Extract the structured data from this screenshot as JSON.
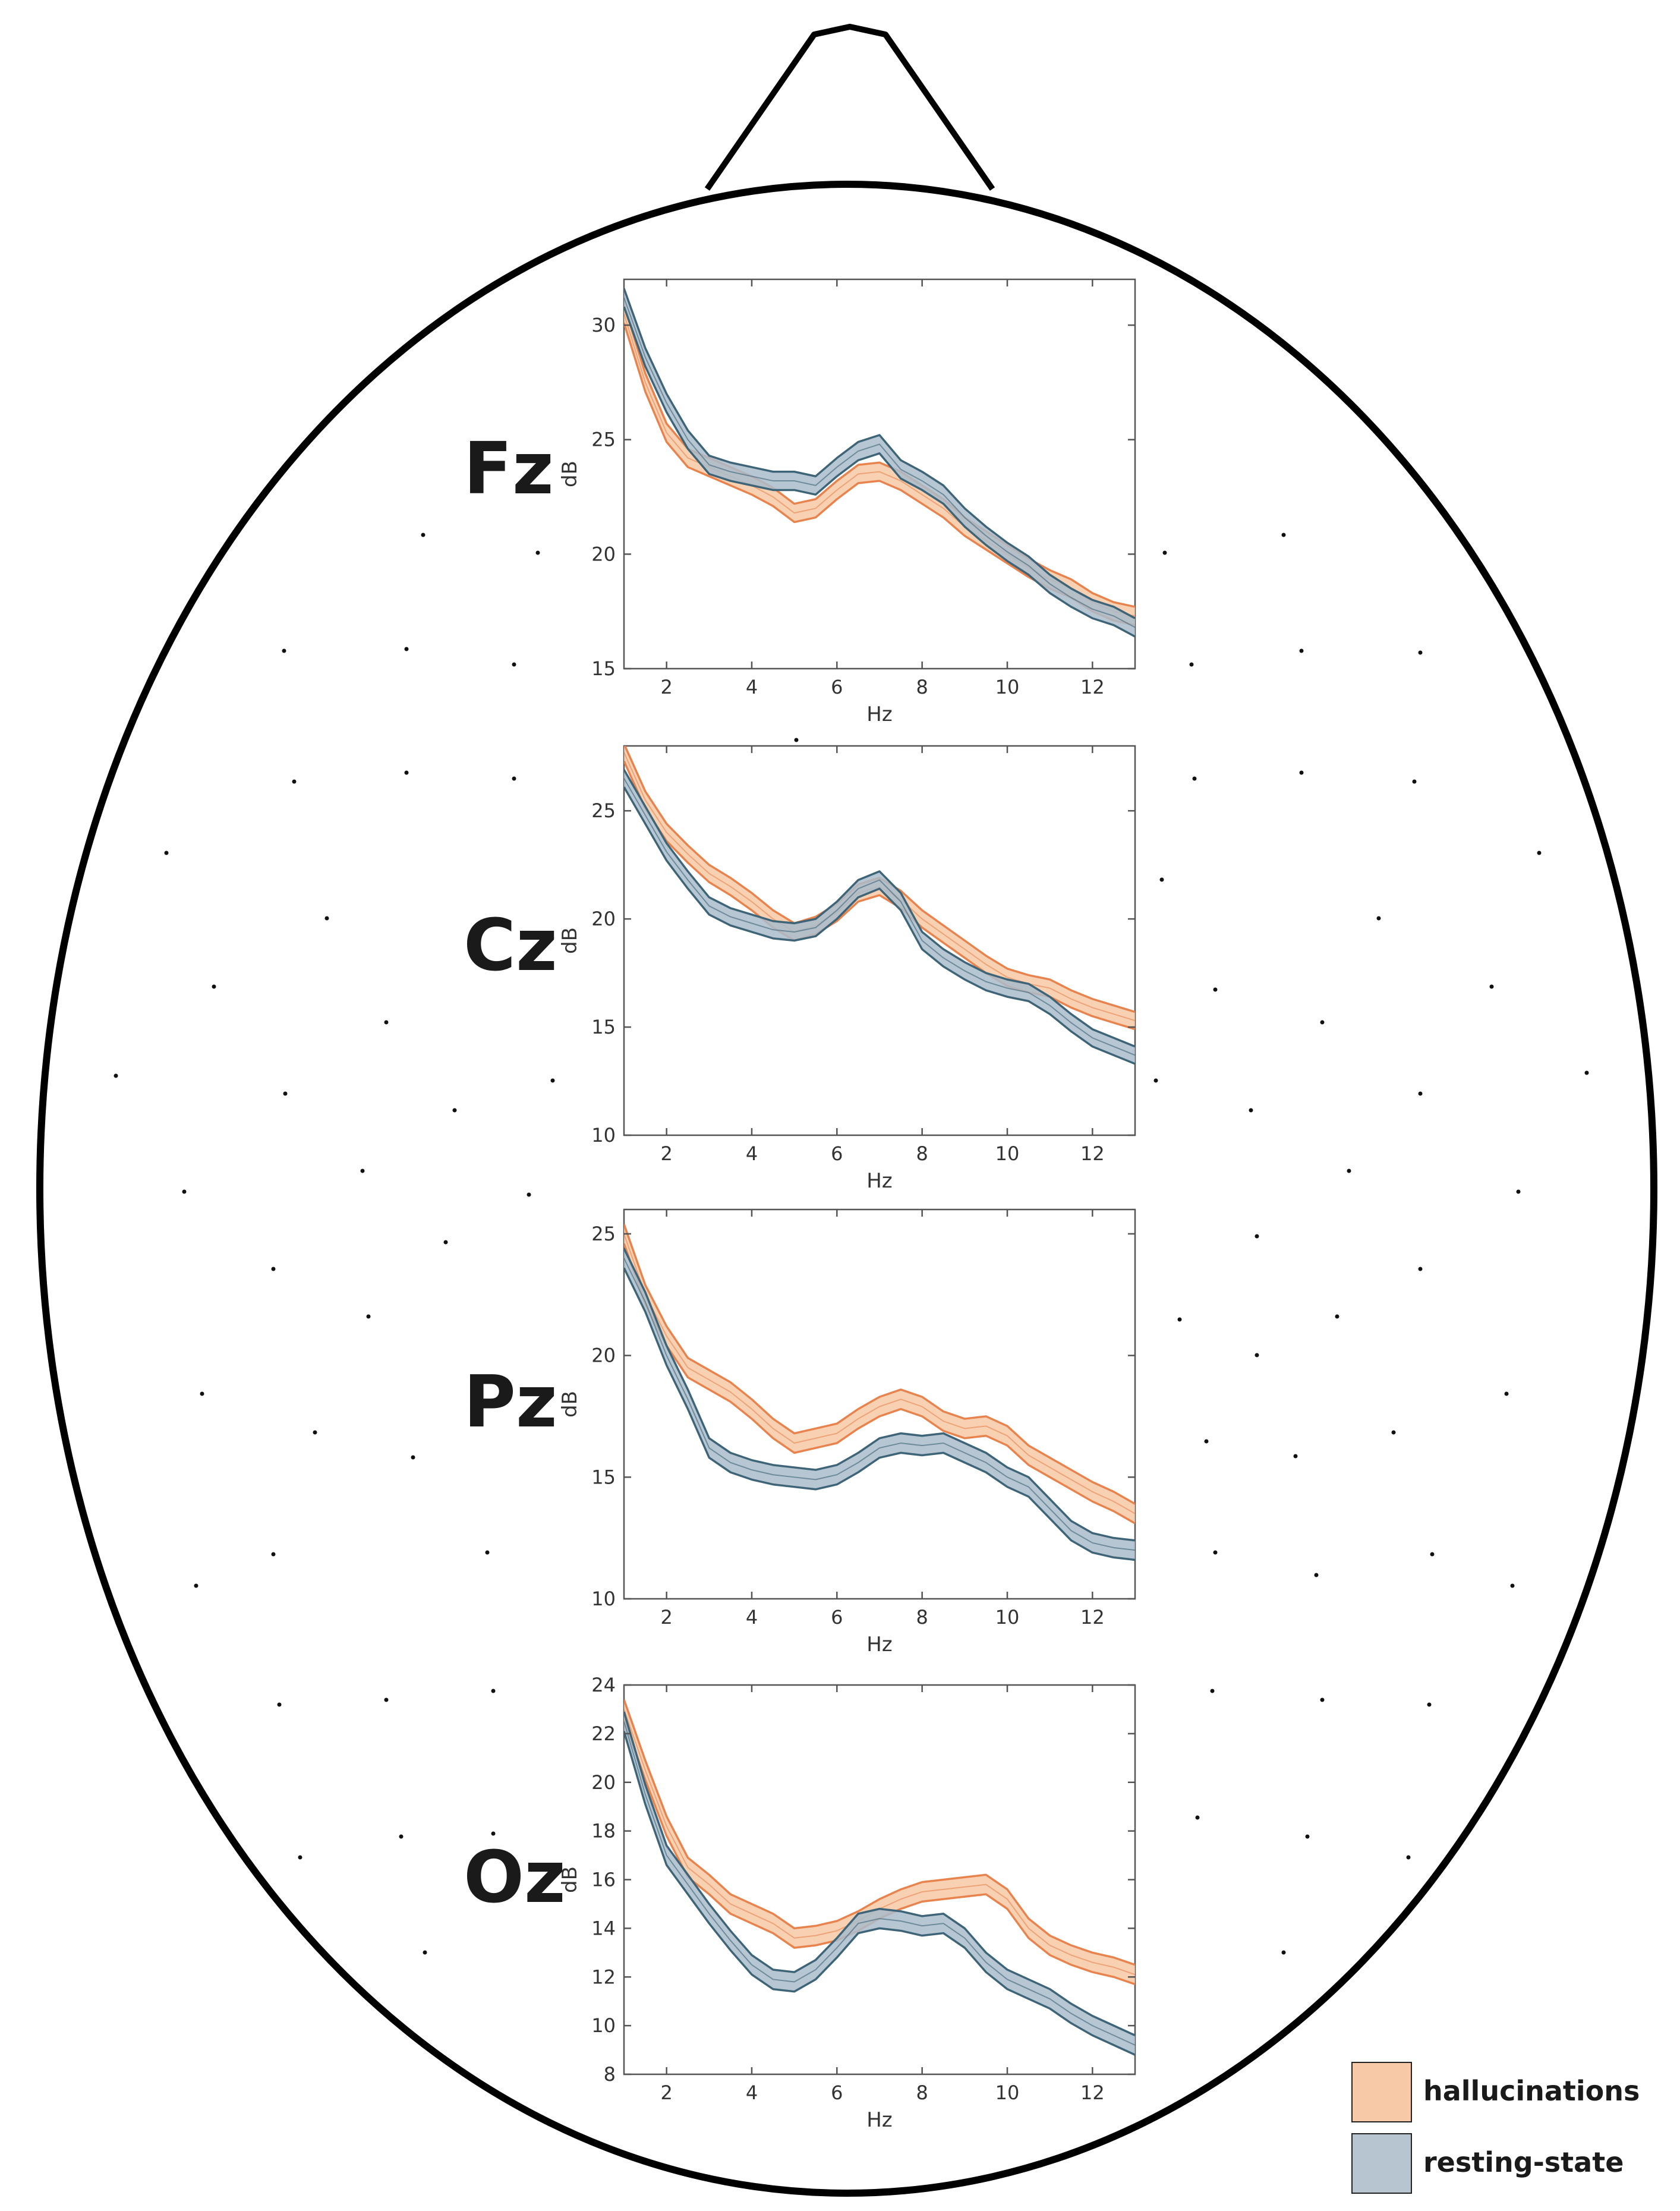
{
  "colors": {
    "hallucinations_line": "#E8834E",
    "hallucinations_band": "#F7C9A6",
    "resting_line": "#3E6478",
    "resting_band": "#A9BCCB",
    "head_outline": "#000000",
    "axes": "#555555"
  },
  "legend": {
    "placement": "bottom-right",
    "items": [
      {
        "label": "hallucinations",
        "color": "#F7C9A6"
      },
      {
        "label": "resting-state",
        "color": "#B7C5D1"
      }
    ]
  },
  "chart_data": [
    {
      "type": "line",
      "electrode": "Fz",
      "xlabel": "Hz",
      "ylabel": "dB",
      "xlim": [
        1,
        13
      ],
      "ylim": [
        15,
        32
      ],
      "xticks": [
        2,
        4,
        6,
        8,
        10,
        12
      ],
      "yticks": [
        15,
        20,
        25,
        30
      ],
      "x": [
        1,
        1.5,
        2,
        2.5,
        3,
        3.5,
        4,
        4.5,
        5,
        5.5,
        6,
        6.5,
        7,
        7.5,
        8,
        8.5,
        9,
        9.5,
        10,
        10.5,
        11,
        11.5,
        12,
        12.5,
        13
      ],
      "series": [
        {
          "name": "hallucinations",
          "band": 0.4,
          "values": [
            30.5,
            27.5,
            25.3,
            24.2,
            23.8,
            23.4,
            23.0,
            22.5,
            21.8,
            22.0,
            22.8,
            23.5,
            23.6,
            23.2,
            22.6,
            22.0,
            21.2,
            20.6,
            20.0,
            19.4,
            18.9,
            18.5,
            17.9,
            17.5,
            17.3
          ]
        },
        {
          "name": "resting-state",
          "band": 0.4,
          "values": [
            31.2,
            28.6,
            26.6,
            25.0,
            23.9,
            23.6,
            23.4,
            23.2,
            23.2,
            23.0,
            23.8,
            24.5,
            24.8,
            23.7,
            23.2,
            22.6,
            21.6,
            20.8,
            20.1,
            19.5,
            18.7,
            18.1,
            17.6,
            17.3,
            16.8
          ]
        }
      ]
    },
    {
      "type": "line",
      "electrode": "Cz",
      "xlabel": "Hz",
      "ylabel": "dB",
      "xlim": [
        1,
        13
      ],
      "ylim": [
        10,
        28
      ],
      "xticks": [
        2,
        4,
        6,
        8,
        10,
        12
      ],
      "yticks": [
        10,
        15,
        20,
        25
      ],
      "x": [
        1,
        1.5,
        2,
        2.5,
        3,
        3.5,
        4,
        4.5,
        5,
        5.5,
        6,
        6.5,
        7,
        7.5,
        8,
        8.5,
        9,
        9.5,
        10,
        10.5,
        11,
        11.5,
        12,
        12.5,
        13
      ],
      "series": [
        {
          "name": "hallucinations",
          "band": 0.4,
          "values": [
            27.7,
            25.5,
            24.0,
            23.0,
            22.1,
            21.5,
            20.8,
            20.0,
            19.4,
            19.7,
            20.3,
            21.2,
            21.5,
            20.9,
            20.0,
            19.3,
            18.6,
            17.9,
            17.3,
            17.0,
            16.8,
            16.3,
            15.9,
            15.6,
            15.3
          ]
        },
        {
          "name": "resting-state",
          "band": 0.4,
          "values": [
            26.5,
            24.8,
            23.1,
            21.8,
            20.6,
            20.1,
            19.8,
            19.5,
            19.4,
            19.6,
            20.4,
            21.4,
            21.8,
            20.8,
            19.0,
            18.2,
            17.6,
            17.1,
            16.8,
            16.6,
            16.0,
            15.2,
            14.5,
            14.1,
            13.7
          ]
        }
      ]
    },
    {
      "type": "line",
      "electrode": "Pz",
      "xlabel": "Hz",
      "ylabel": "dB",
      "xlim": [
        1,
        13
      ],
      "ylim": [
        10,
        26
      ],
      "xticks": [
        2,
        4,
        6,
        8,
        10,
        12
      ],
      "yticks": [
        10,
        15,
        20,
        25
      ],
      "x": [
        1,
        1.5,
        2,
        2.5,
        3,
        3.5,
        4,
        4.5,
        5,
        5.5,
        6,
        6.5,
        7,
        7.5,
        8,
        8.5,
        9,
        9.5,
        10,
        10.5,
        11,
        11.5,
        12,
        12.5,
        13
      ],
      "series": [
        {
          "name": "hallucinations",
          "band": 0.4,
          "values": [
            25.0,
            22.5,
            20.8,
            19.5,
            19.0,
            18.5,
            17.8,
            17.0,
            16.4,
            16.6,
            16.8,
            17.4,
            17.9,
            18.2,
            17.9,
            17.3,
            17.0,
            17.1,
            16.7,
            15.9,
            15.4,
            14.9,
            14.4,
            14.0,
            13.5
          ]
        },
        {
          "name": "resting-state",
          "band": 0.4,
          "values": [
            24.0,
            22.2,
            20.0,
            18.2,
            16.2,
            15.6,
            15.3,
            15.1,
            15.0,
            14.9,
            15.1,
            15.6,
            16.2,
            16.4,
            16.3,
            16.4,
            16.0,
            15.6,
            15.0,
            14.6,
            13.7,
            12.8,
            12.3,
            12.1,
            12.0
          ]
        }
      ]
    },
    {
      "type": "line",
      "electrode": "Oz",
      "xlabel": "Hz",
      "ylabel": "dB",
      "xlim": [
        1,
        13
      ],
      "ylim": [
        8,
        24
      ],
      "xticks": [
        2,
        4,
        6,
        8,
        10,
        12
      ],
      "yticks": [
        8,
        10,
        12,
        14,
        16,
        18,
        20,
        22,
        24
      ],
      "x": [
        1,
        1.5,
        2,
        2.5,
        3,
        3.5,
        4,
        4.5,
        5,
        5.5,
        6,
        6.5,
        7,
        7.5,
        8,
        8.5,
        9,
        9.5,
        10,
        10.5,
        11,
        11.5,
        12,
        12.5,
        13
      ],
      "series": [
        {
          "name": "hallucinations",
          "band": 0.4,
          "values": [
            23.0,
            20.5,
            18.2,
            16.5,
            15.8,
            15.0,
            14.6,
            14.2,
            13.6,
            13.7,
            13.9,
            14.3,
            14.8,
            15.2,
            15.5,
            15.6,
            15.7,
            15.8,
            15.2,
            14.0,
            13.3,
            12.9,
            12.6,
            12.4,
            12.1
          ]
        },
        {
          "name": "resting-state",
          "band": 0.4,
          "values": [
            22.5,
            19.5,
            17.0,
            15.8,
            14.6,
            13.5,
            12.5,
            11.9,
            11.8,
            12.3,
            13.2,
            14.2,
            14.4,
            14.3,
            14.1,
            14.2,
            13.6,
            12.6,
            11.9,
            11.5,
            11.1,
            10.5,
            10.0,
            9.6,
            9.2
          ]
        }
      ]
    }
  ]
}
